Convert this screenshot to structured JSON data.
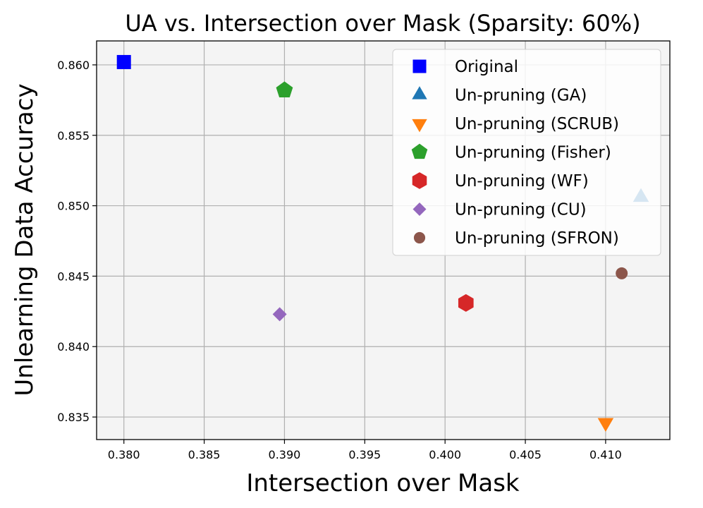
{
  "chart_data": {
    "type": "scatter",
    "title": "UA vs. Intersection over Mask (Sparsity: 60%)",
    "xlabel": "Intersection over Mask",
    "ylabel": "Unlearning Data Accuracy",
    "xlim": [
      0.3783,
      0.414
    ],
    "ylim": [
      0.8334,
      0.8617
    ],
    "xticks": [
      "0.380",
      "0.385",
      "0.390",
      "0.395",
      "0.400",
      "0.405",
      "0.410"
    ],
    "xtick_values": [
      0.38,
      0.385,
      0.39,
      0.395,
      0.4,
      0.405,
      0.41
    ],
    "yticks": [
      "0.835",
      "0.840",
      "0.845",
      "0.850",
      "0.855",
      "0.860"
    ],
    "ytick_values": [
      0.835,
      0.84,
      0.845,
      0.85,
      0.855,
      0.86
    ],
    "grid": true,
    "legend_position": "upper right",
    "series": [
      {
        "name": "Original",
        "marker": "square",
        "color": "#0000ff",
        "x": 0.38,
        "y": 0.8602
      },
      {
        "name": "Un-pruning (GA)",
        "marker": "triangle-up",
        "color": "#1f77b4",
        "x": 0.4122,
        "y": 0.8506
      },
      {
        "name": "Un-pruning (SCRUB)",
        "marker": "triangle-down",
        "color": "#ff7f0e",
        "x": 0.41,
        "y": 0.8346
      },
      {
        "name": "Un-pruning (Fisher)",
        "marker": "pentagon",
        "color": "#2ca02c",
        "x": 0.39,
        "y": 0.8582
      },
      {
        "name": "Un-pruning (WF)",
        "marker": "hexagon",
        "color": "#d62728",
        "x": 0.4013,
        "y": 0.8431
      },
      {
        "name": "Un-pruning (CU)",
        "marker": "diamond",
        "color": "#9467bd",
        "x": 0.3897,
        "y": 0.8423
      },
      {
        "name": "Un-pruning (SFRON)",
        "marker": "circle",
        "color": "#8c564b",
        "x": 0.411,
        "y": 0.8452
      }
    ]
  }
}
